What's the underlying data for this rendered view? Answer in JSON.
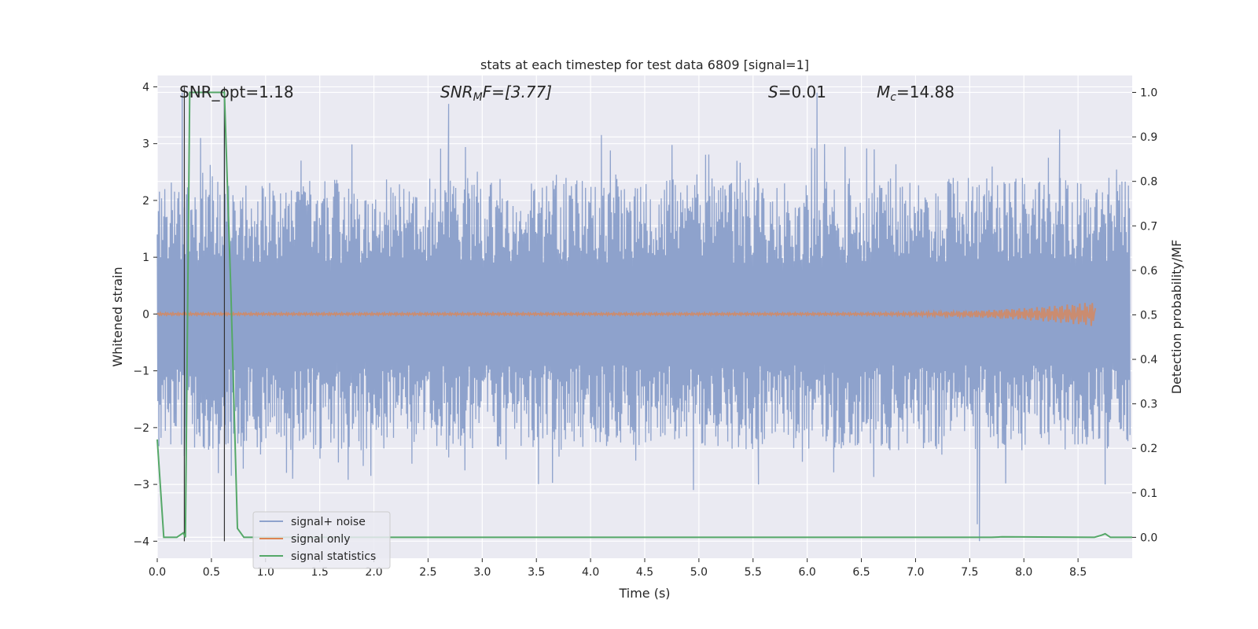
{
  "chart_data": {
    "type": "line",
    "title": "stats at each timestep for test data 6809 [signal=1]",
    "xlabel": "Time (s)",
    "ylabel": "Whitened strain",
    "ylabel_right": "Detection probability/MF",
    "xlim": [
      0,
      9.0
    ],
    "ylim": [
      -4.3,
      4.2
    ],
    "ylim_right": [
      -0.047,
      1.038
    ],
    "x_ticks": [
      "0.0",
      "0.5",
      "1.0",
      "1.5",
      "2.0",
      "2.5",
      "3.0",
      "3.5",
      "4.0",
      "4.5",
      "5.0",
      "5.5",
      "6.0",
      "6.5",
      "7.0",
      "7.5",
      "8.0",
      "8.5"
    ],
    "y_ticks": [
      "4",
      "3",
      "2",
      "1",
      "0",
      "−1",
      "−2",
      "−3",
      "−4"
    ],
    "y_ticks_values": [
      4,
      3,
      2,
      1,
      0,
      -1,
      -2,
      -3,
      -4
    ],
    "y_right_ticks": [
      "1.0",
      "0.9",
      "0.8",
      "0.7",
      "0.6",
      "0.5",
      "0.4",
      "0.3",
      "0.2",
      "0.1",
      "0.0"
    ],
    "y_right_ticks_values": [
      1.0,
      0.9,
      0.8,
      0.7,
      0.6,
      0.5,
      0.4,
      0.3,
      0.2,
      0.1,
      0.0
    ],
    "grid": true,
    "legend_position": "lower-left",
    "annotations": {
      "snr_opt": "SNR_opt=1.18",
      "snr_mf_label": "SNR",
      "snr_mf_sub": "M",
      "snr_mf_rest": "F=[3.77]",
      "s_label": "S",
      "s_value": "=0.01",
      "mc_label": "M",
      "mc_sub": "c",
      "mc_value": "=14.88"
    },
    "vlines_x": [
      0.25,
      0.62
    ],
    "series": [
      {
        "name": "signal+ noise",
        "color": "#8ea2cc",
        "description_values": {
          "typical_envelope": [
            -1.9,
            1.9
          ],
          "peak_max": 3.9,
          "peak_min": -4.0,
          "samples_extreme": [
            [
              0.23,
              3.9
            ],
            [
              0.4,
              3.1
            ],
            [
              0.62,
              3.9
            ],
            [
              2.69,
              3.7
            ],
            [
              4.1,
              3.15
            ],
            [
              6.09,
              3.9
            ],
            [
              8.33,
              3.25
            ],
            [
              0.25,
              -2.5
            ],
            [
              1.25,
              -2.9
            ],
            [
              4.95,
              -3.1
            ],
            [
              5.55,
              -3.0
            ],
            [
              7.57,
              -3.7
            ],
            [
              7.59,
              -4.0
            ],
            [
              8.75,
              -3.0
            ]
          ]
        }
      },
      {
        "name": "signal only",
        "color": "#dd8452",
        "description_values": {
          "baseline": 0.0,
          "chirp_end_time": 8.66,
          "chirp_peak_amplitude": 0.2
        }
      },
      {
        "name": "signal statistics",
        "color": "#55a868",
        "axis": "right",
        "x": [
          0.0,
          0.06,
          0.18,
          0.24,
          0.26,
          0.3,
          0.6,
          0.62,
          0.68,
          0.74,
          0.8,
          0.9,
          1.5,
          7.0,
          7.7,
          7.8,
          8.65,
          8.72,
          8.75,
          8.8,
          9.0
        ],
        "y": [
          0.22,
          0.0,
          0.0,
          0.01,
          0.0,
          1.0,
          1.0,
          1.0,
          0.55,
          0.02,
          0.0,
          0.0,
          0.0,
          0.0,
          0.0,
          0.001,
          0.0,
          0.005,
          0.008,
          0.0,
          0.0
        ]
      }
    ]
  }
}
